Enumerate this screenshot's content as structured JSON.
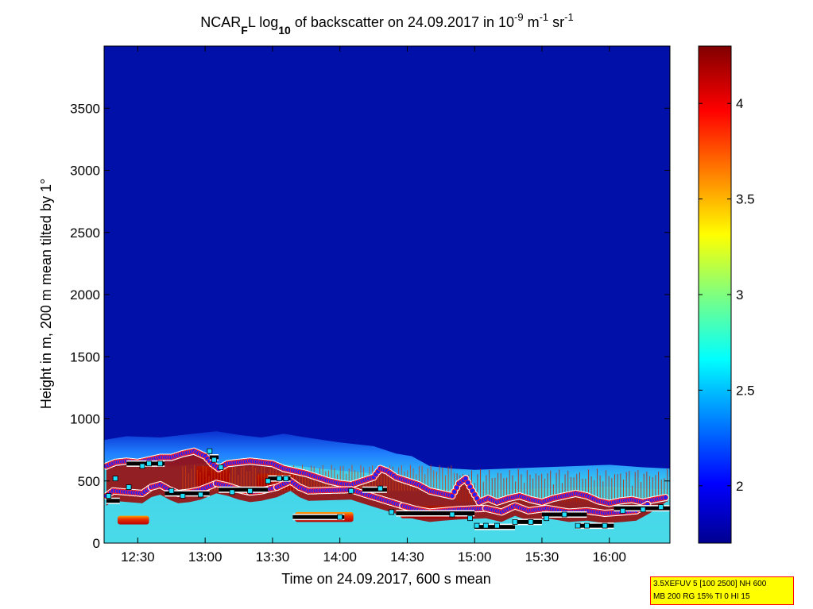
{
  "chart_data": {
    "type": "heatmap",
    "title": {
      "prefix": "NCAR",
      "sub1": "F",
      "part2": "L log",
      "sub2": "10",
      "part3": " of backscatter on 24.09.2017 in 10",
      "sup1": "-9",
      "part4": " m",
      "sup2": "-1",
      "part5": " sr",
      "sup3": "-1"
    },
    "xlabel": "Time on 24.09.2017, 600 s mean",
    "ylabel": "Height in m, 200 m mean tilted by 1°",
    "x_ticks": [
      "12:30",
      "13:00",
      "13:30",
      "14:00",
      "14:30",
      "15:00",
      "15:30",
      "16:00"
    ],
    "x_tick_minutes": [
      750,
      780,
      810,
      840,
      870,
      900,
      930,
      960
    ],
    "x_range_minutes": [
      735,
      987
    ],
    "y_ticks": [
      "0",
      "500",
      "1000",
      "1500",
      "2000",
      "2500",
      "3000",
      "3500"
    ],
    "y_tick_values": [
      0,
      500,
      1000,
      1500,
      2000,
      2500,
      3000,
      3500
    ],
    "y_range": [
      0,
      4000
    ],
    "colorbar": {
      "range": [
        1.7,
        4.3
      ],
      "ticks": [
        "2",
        "2.5",
        "3",
        "3.5",
        "4"
      ],
      "tick_values": [
        2,
        2.5,
        3,
        3.5,
        4
      ],
      "colormap": "jet"
    },
    "background_color": "#0010a8",
    "aerosol_top_profile": [
      [
        735,
        830
      ],
      [
        745,
        860
      ],
      [
        760,
        850
      ],
      [
        775,
        880
      ],
      [
        785,
        900
      ],
      [
        795,
        870
      ],
      [
        805,
        850
      ],
      [
        815,
        880
      ],
      [
        825,
        850
      ],
      [
        840,
        810
      ],
      [
        855,
        780
      ],
      [
        865,
        720
      ],
      [
        872,
        700
      ],
      [
        880,
        620
      ],
      [
        890,
        600
      ],
      [
        900,
        590
      ],
      [
        915,
        600
      ],
      [
        930,
        610
      ],
      [
        945,
        620
      ],
      [
        960,
        630
      ],
      [
        975,
        610
      ],
      [
        987,
        600
      ]
    ],
    "layer_heights_blue": [
      [
        736,
        620
      ],
      [
        740,
        650
      ],
      [
        745,
        660
      ],
      [
        750,
        650
      ],
      [
        755,
        670
      ],
      [
        760,
        690
      ],
      [
        765,
        690
      ],
      [
        770,
        720
      ],
      [
        775,
        740
      ],
      [
        780,
        700
      ],
      [
        783,
        640
      ],
      [
        786,
        600
      ],
      [
        790,
        640
      ],
      [
        795,
        650
      ],
      [
        800,
        660
      ],
      [
        805,
        650
      ],
      [
        810,
        640
      ],
      [
        815,
        600
      ],
      [
        820,
        580
      ],
      [
        825,
        560
      ],
      [
        830,
        530
      ],
      [
        835,
        500
      ],
      [
        840,
        480
      ],
      [
        845,
        470
      ],
      [
        850,
        500
      ],
      [
        855,
        530
      ],
      [
        858,
        600
      ],
      [
        861,
        580
      ],
      [
        865,
        530
      ],
      [
        870,
        500
      ],
      [
        875,
        470
      ],
      [
        880,
        420
      ],
      [
        885,
        400
      ],
      [
        890,
        380
      ],
      [
        893,
        480
      ],
      [
        896,
        520
      ],
      [
        899,
        420
      ],
      [
        902,
        330
      ],
      [
        906,
        360
      ],
      [
        910,
        330
      ],
      [
        915,
        360
      ],
      [
        920,
        380
      ],
      [
        925,
        350
      ],
      [
        930,
        330
      ],
      [
        935,
        360
      ],
      [
        940,
        380
      ],
      [
        945,
        400
      ],
      [
        950,
        380
      ],
      [
        955,
        340
      ],
      [
        960,
        320
      ],
      [
        965,
        340
      ],
      [
        970,
        350
      ],
      [
        975,
        330
      ],
      [
        980,
        350
      ],
      [
        986,
        370
      ]
    ],
    "layer_heights_blue_lower": [
      [
        736,
        380
      ],
      [
        739,
        420
      ],
      [
        752,
        400
      ],
      [
        756,
        450
      ],
      [
        760,
        470
      ],
      [
        764,
        430
      ],
      [
        768,
        400
      ],
      [
        773,
        410
      ],
      [
        778,
        430
      ],
      [
        785,
        480
      ],
      [
        790,
        460
      ],
      [
        795,
        430
      ],
      [
        800,
        410
      ],
      [
        805,
        420
      ],
      [
        812,
        450
      ],
      [
        818,
        500
      ],
      [
        822,
        450
      ],
      [
        826,
        420
      ],
      [
        845,
        430
      ],
      [
        850,
        400
      ],
      [
        868,
        300
      ],
      [
        874,
        270
      ],
      [
        880,
        250
      ],
      [
        886,
        260
      ],
      [
        893,
        270
      ],
      [
        905,
        280
      ],
      [
        912,
        250
      ],
      [
        918,
        300
      ],
      [
        924,
        260
      ],
      [
        932,
        280
      ],
      [
        942,
        250
      ],
      [
        950,
        260
      ],
      [
        958,
        240
      ],
      [
        966,
        250
      ],
      [
        972,
        260
      ],
      [
        978,
        320
      ]
    ],
    "mixing_layer_segments_black": [
      [
        [
          736,
          742
        ],
        340
      ],
      [
        [
          745,
          762
        ],
        640
      ],
      [
        [
          762,
          782
        ],
        400
      ],
      [
        [
          782,
          786
        ],
        690
      ],
      [
        [
          786,
          808
        ],
        430
      ],
      [
        [
          808,
          818
        ],
        520
      ],
      [
        [
          819,
          842
        ],
        210
      ],
      [
        [
          850,
          861
        ],
        430
      ],
      [
        [
          865,
          900
        ],
        240
      ],
      [
        [
          900,
          918
        ],
        130
      ],
      [
        [
          917,
          930
        ],
        170
      ],
      [
        [
          930,
          950
        ],
        230
      ],
      [
        [
          945,
          962
        ],
        140
      ],
      [
        [
          962,
          987
        ],
        280
      ]
    ],
    "cyan_markers": [
      [
        737,
        380
      ],
      [
        740,
        520
      ],
      [
        746,
        450
      ],
      [
        752,
        620
      ],
      [
        755,
        640
      ],
      [
        760,
        640
      ],
      [
        765,
        420
      ],
      [
        770,
        380
      ],
      [
        778,
        390
      ],
      [
        782,
        740
      ],
      [
        784,
        670
      ],
      [
        787,
        610
      ],
      [
        792,
        410
      ],
      [
        800,
        420
      ],
      [
        808,
        500
      ],
      [
        813,
        520
      ],
      [
        816,
        520
      ],
      [
        840,
        210
      ],
      [
        845,
        420
      ],
      [
        858,
        440
      ],
      [
        863,
        250
      ],
      [
        890,
        230
      ],
      [
        898,
        200
      ],
      [
        901,
        140
      ],
      [
        905,
        140
      ],
      [
        910,
        140
      ],
      [
        918,
        170
      ],
      [
        925,
        170
      ],
      [
        932,
        200
      ],
      [
        940,
        230
      ],
      [
        946,
        140
      ],
      [
        950,
        140
      ],
      [
        958,
        140
      ],
      [
        966,
        260
      ],
      [
        975,
        270
      ],
      [
        983,
        290
      ]
    ],
    "red_patches": [
      [
        [
          741,
          755
        ],
        [
          150,
          220
        ]
      ],
      [
        [
          776,
          791
        ],
        [
          450,
          620
        ]
      ],
      [
        [
          803,
          820
        ],
        [
          430,
          560
        ]
      ],
      [
        [
          820,
          846
        ],
        [
          170,
          250
        ]
      ],
      [
        [
          867,
          900
        ],
        [
          200,
          300
        ]
      ]
    ],
    "annotation_lines": [
      "3.5XEFUV 5 [100 2500] NH 600",
      "MB 200 RG 15% TI 0 HI 15"
    ]
  },
  "colors": {
    "axes_frame": "#000000",
    "info_box_bg": "#ffff00",
    "info_box_border": "#ff0000",
    "layer_blue": "#2020ff",
    "layer_red": "#ff2020",
    "layer_white": "#ffffff",
    "ml_black": "#000000",
    "marker_cyan": "#20e0ff"
  }
}
